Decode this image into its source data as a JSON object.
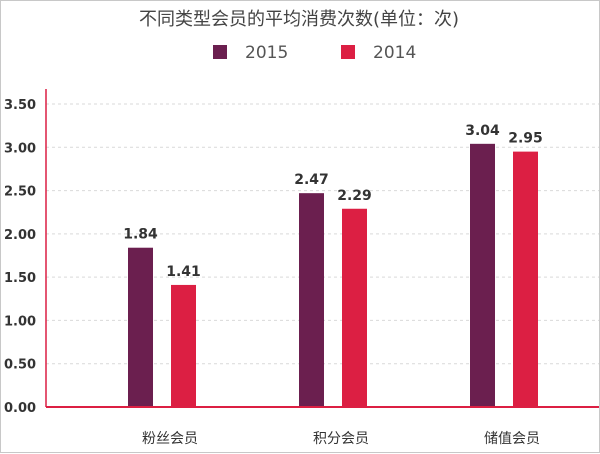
{
  "chart_data": {
    "type": "bar",
    "title": "不同类型会员的平均消费次数(单位：次)",
    "categories": [
      "粉丝会员",
      "积分会员",
      "储值会员"
    ],
    "series": [
      {
        "name": "2015",
        "values": [
          1.84,
          2.47,
          3.04
        ],
        "color": "#6b1f4f"
      },
      {
        "name": "2014",
        "values": [
          1.41,
          2.29,
          2.95
        ],
        "color": "#dc1f43"
      }
    ],
    "ylim": [
      0,
      3.5
    ],
    "yticks": [
      "0.00",
      "0.50",
      "1.00",
      "1.50",
      "2.00",
      "2.50",
      "3.00",
      "3.50"
    ],
    "axis_color": "#dc1f43",
    "grid": "dashed",
    "legend_position": "top-center"
  }
}
